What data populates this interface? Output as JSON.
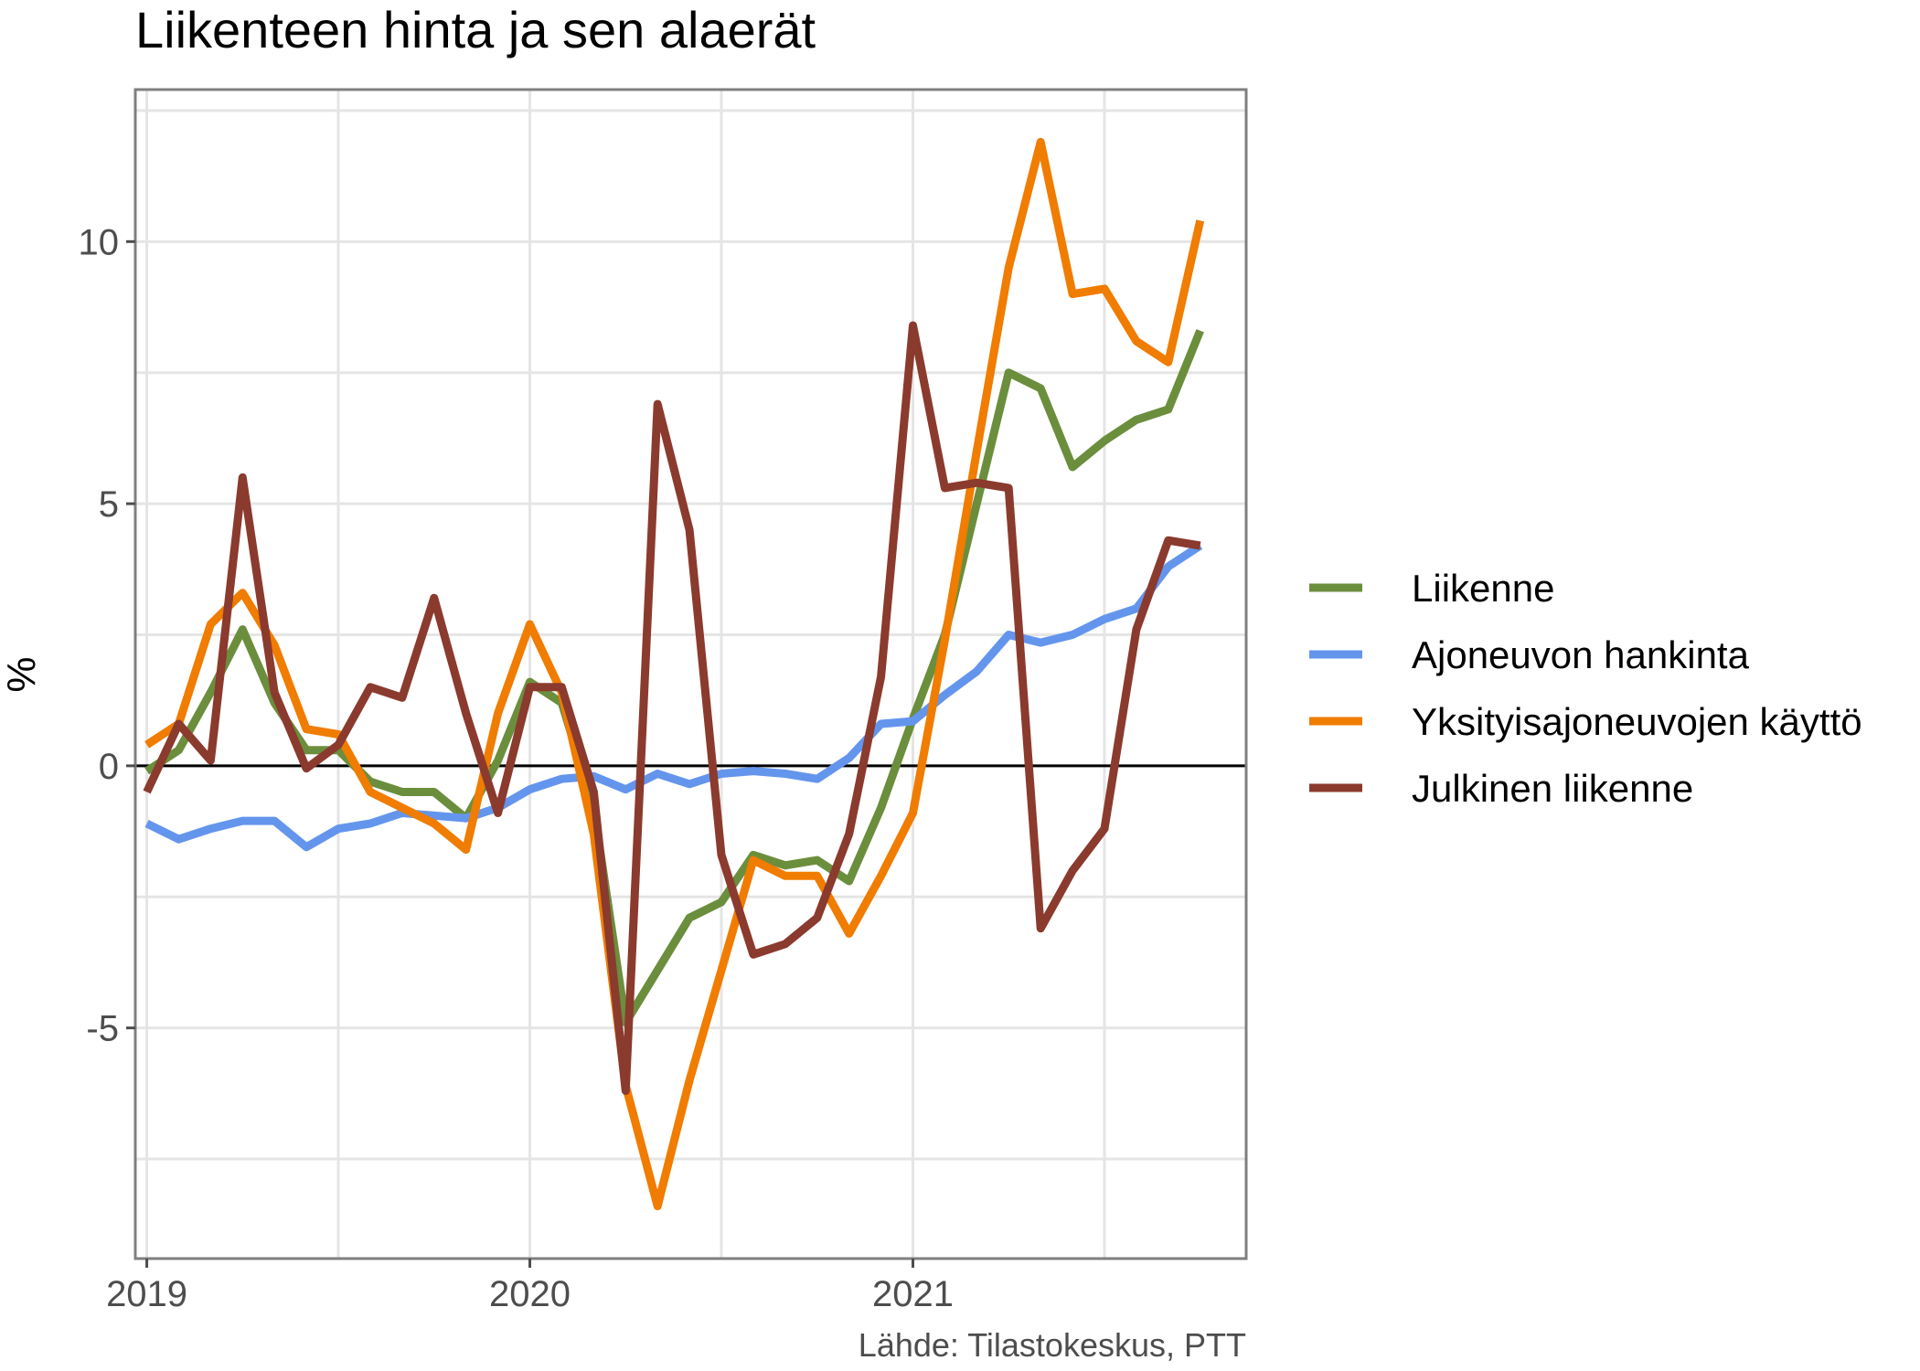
{
  "chart_data": {
    "type": "line",
    "title": "Liikenteen hinta ja sen alaerät",
    "xlabel": "",
    "ylabel": "%",
    "caption": "Lähde: Tilastokeskus, PTT",
    "xlim": [
      2018.97,
      2021.87
    ],
    "ylim": [
      -9.4,
      12.9
    ],
    "x_ticks": [
      {
        "value": 2019,
        "label": "2019"
      },
      {
        "value": 2020,
        "label": "2020"
      },
      {
        "value": 2021,
        "label": "2021"
      }
    ],
    "y_ticks": [
      {
        "value": -5,
        "label": "-5"
      },
      {
        "value": 0,
        "label": "0"
      },
      {
        "value": 5,
        "label": "5"
      },
      {
        "value": 10,
        "label": "10"
      }
    ],
    "grid": true,
    "reference_line_y": 0,
    "legend_position": "right",
    "x": [
      "2019-01",
      "2019-02",
      "2019-03",
      "2019-04",
      "2019-05",
      "2019-06",
      "2019-07",
      "2019-08",
      "2019-09",
      "2019-10",
      "2019-11",
      "2019-12",
      "2020-01",
      "2020-02",
      "2020-03",
      "2020-04",
      "2020-05",
      "2020-06",
      "2020-07",
      "2020-08",
      "2020-09",
      "2020-10",
      "2020-11",
      "2020-12",
      "2021-01",
      "2021-02",
      "2021-03",
      "2021-04",
      "2021-05",
      "2021-06",
      "2021-07",
      "2021-08",
      "2021-09",
      "2021-10"
    ],
    "series": [
      {
        "name": "Liikenne",
        "color": "#6b8e3d",
        "values": [
          -0.1,
          0.3,
          1.4,
          2.6,
          1.2,
          0.3,
          0.3,
          -0.3,
          -0.5,
          -0.5,
          -1.0,
          0.1,
          1.6,
          1.2,
          -0.8,
          -4.9,
          -3.9,
          -2.9,
          -2.6,
          -1.7,
          -1.9,
          -1.8,
          -2.2,
          -0.8,
          0.9,
          2.5,
          5.0,
          7.5,
          7.2,
          5.7,
          6.2,
          6.6,
          6.8,
          8.3
        ]
      },
      {
        "name": "Ajoneuvon hankinta",
        "color": "#6495ed",
        "values": [
          -1.1,
          -1.4,
          -1.2,
          -1.05,
          -1.05,
          -1.55,
          -1.2,
          -1.1,
          -0.9,
          -0.95,
          -1.0,
          -0.8,
          -0.45,
          -0.25,
          -0.2,
          -0.45,
          -0.15,
          -0.35,
          -0.15,
          -0.1,
          -0.15,
          -0.25,
          0.15,
          0.8,
          0.85,
          1.35,
          1.8,
          2.5,
          2.35,
          2.5,
          2.8,
          3.0,
          3.8,
          4.2
        ]
      },
      {
        "name": "Yksityisajoneuvojen käyttö",
        "color": "#f07c00",
        "values": [
          0.4,
          0.8,
          2.7,
          3.3,
          2.3,
          0.7,
          0.6,
          -0.5,
          -0.8,
          -1.1,
          -1.6,
          1.0,
          2.7,
          1.4,
          -1.3,
          -6.1,
          -8.4,
          -6.0,
          -3.9,
          -1.8,
          -2.1,
          -2.1,
          -3.2,
          -2.1,
          -0.9,
          2.4,
          6.0,
          9.5,
          11.9,
          9.0,
          9.1,
          8.1,
          7.7,
          10.4
        ]
      },
      {
        "name": "Julkinen liikenne",
        "color": "#8b3a2e",
        "values": [
          -0.5,
          0.8,
          0.1,
          5.5,
          1.4,
          -0.05,
          0.4,
          1.5,
          1.3,
          3.2,
          1.0,
          -0.9,
          1.5,
          1.5,
          -0.5,
          -6.2,
          6.9,
          4.5,
          -1.7,
          -3.6,
          -3.4,
          -2.9,
          -1.3,
          1.7,
          8.4,
          5.3,
          5.4,
          5.3,
          -3.1,
          -2.0,
          -1.2,
          2.6,
          4.3,
          4.2
        ]
      }
    ]
  }
}
